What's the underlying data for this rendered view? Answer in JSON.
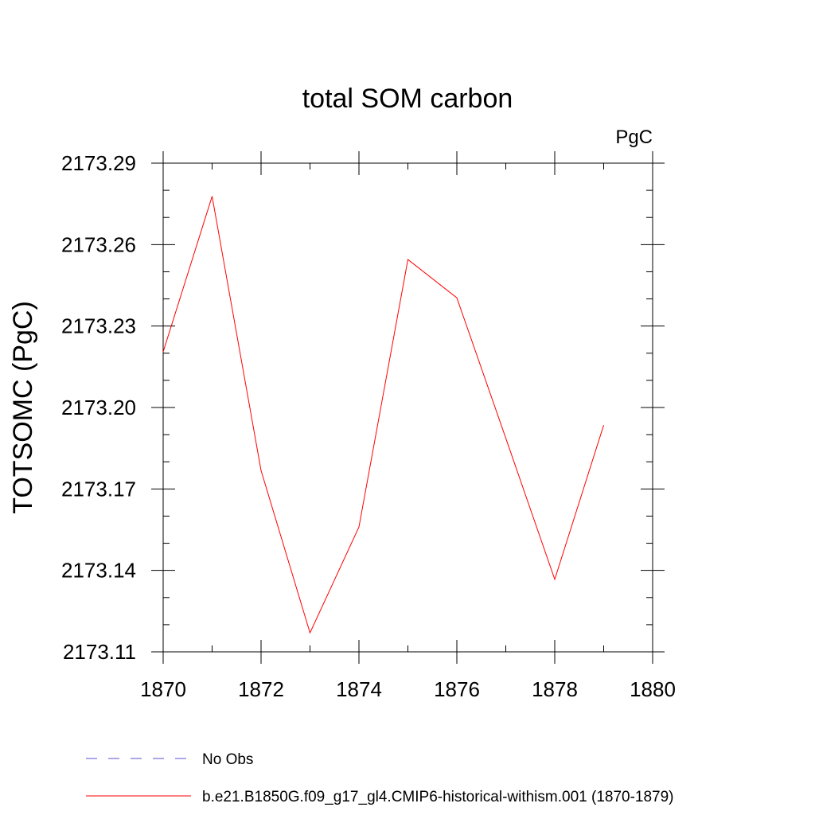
{
  "chart_data": {
    "type": "line",
    "title": "total SOM carbon",
    "units_label": "PgC",
    "ylabel": "TOTSOMC  (PgC)",
    "xlabel": "",
    "xlim": [
      1870,
      1880
    ],
    "ylim": [
      2173.11,
      2173.29
    ],
    "x_ticks": [
      1870,
      1872,
      1874,
      1876,
      1878,
      1880
    ],
    "x_tick_labels": [
      "1870",
      "1872",
      "1874",
      "1876",
      "1878",
      "1880"
    ],
    "y_ticks": [
      2173.11,
      2173.14,
      2173.17,
      2173.2,
      2173.23,
      2173.26,
      2173.29
    ],
    "y_tick_labels": [
      "2173.11",
      "2173.14",
      "2173.17",
      "2173.20",
      "2173.23",
      "2173.26",
      "2173.29"
    ],
    "x_minor_step": 1,
    "y_minor_step": 0.01,
    "grid": false,
    "legend_position": "bottom-left, below plot",
    "series": [
      {
        "name": "No Obs",
        "color": "#5a4fcf",
        "dash": "dashed",
        "x": [],
        "y": []
      },
      {
        "name": "b.e21.B1850G.f09_g17_gl4.CMIP6-historical-withism.001 (1870-1879)",
        "color": "#ff0000",
        "dash": "solid",
        "x": [
          1870,
          1871,
          1872,
          1873,
          1874,
          1875,
          1876,
          1877,
          1878,
          1879
        ],
        "y": [
          2173.2205,
          2173.2778,
          2173.1768,
          2173.117,
          2173.156,
          2173.2545,
          2173.2404,
          2173.1887,
          2173.1367,
          2173.1935
        ]
      }
    ]
  }
}
